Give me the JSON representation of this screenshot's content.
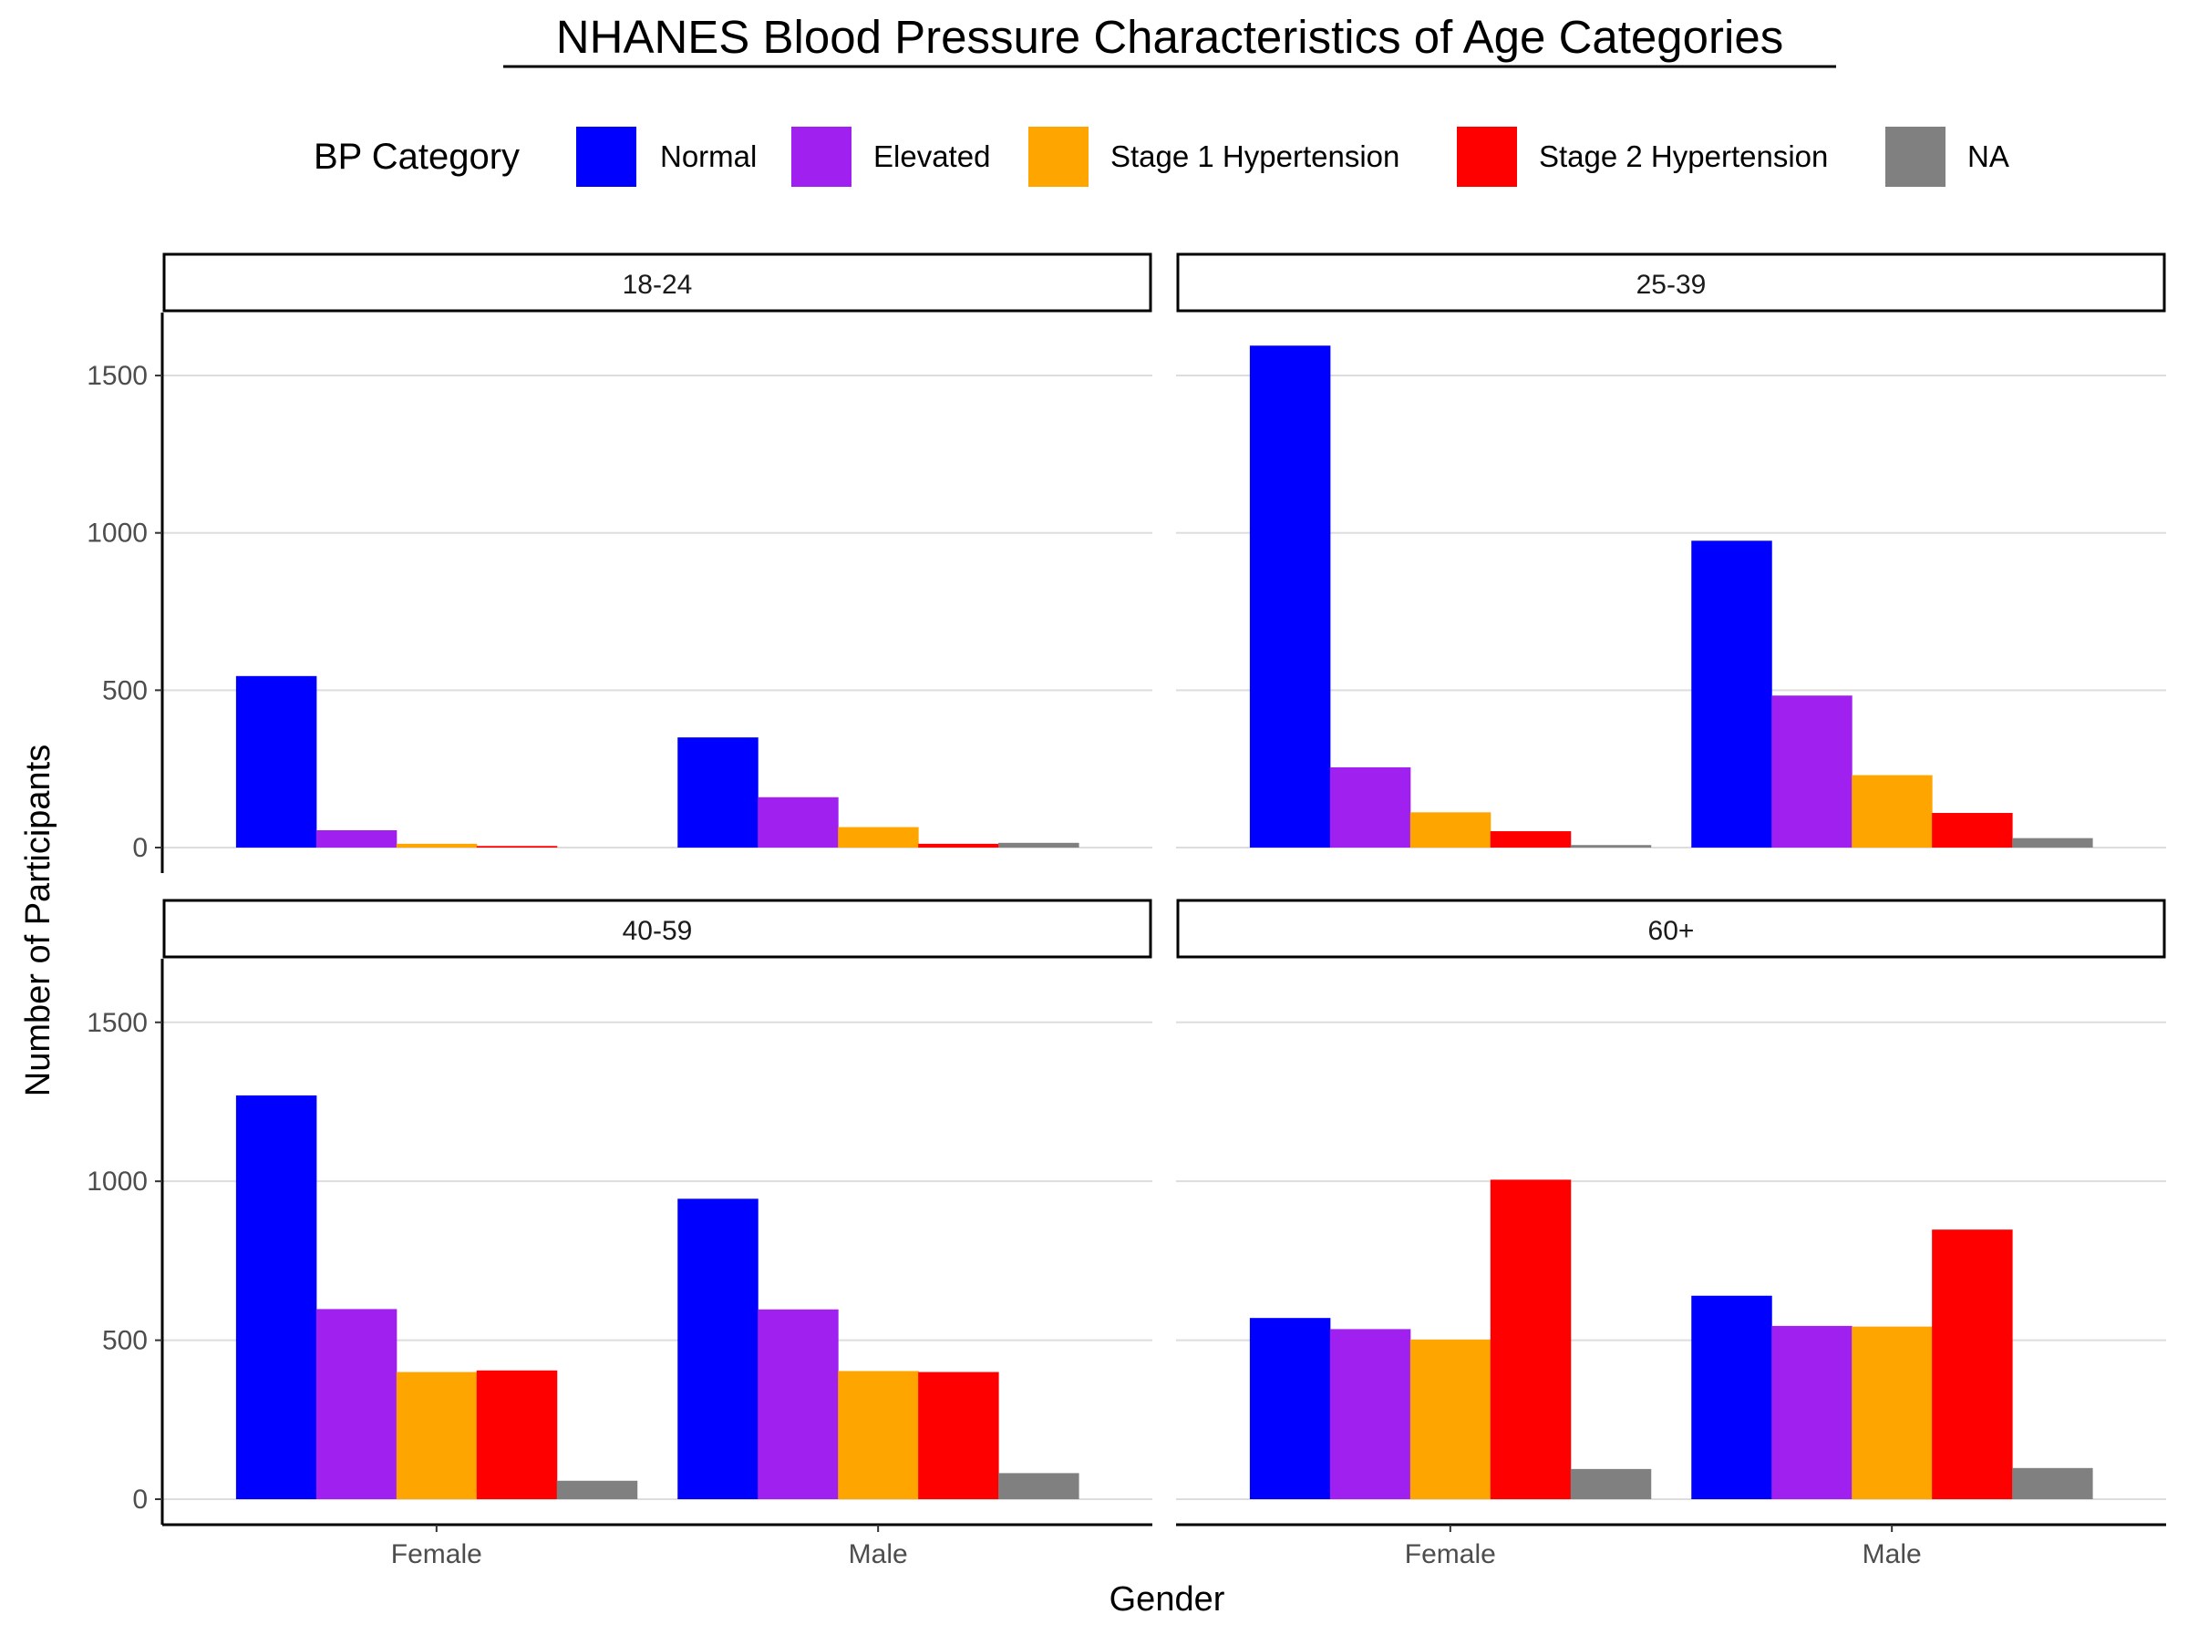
{
  "chart_data": {
    "type": "bar",
    "title": "NHANES Blood Pressure Characteristics of Age Categories",
    "xlabel": "Gender",
    "ylabel": "Number of Participants",
    "ylim": [
      0,
      1700
    ],
    "yticks": [
      0,
      500,
      1000,
      1500
    ],
    "grid": "horizontal major gridlines",
    "legend": {
      "title": "BP Category",
      "position": "top",
      "entries": [
        {
          "name": "Normal",
          "color": "#0000ff"
        },
        {
          "name": "Elevated",
          "color": "#a020f0"
        },
        {
          "name": "Stage 1 Hypertension",
          "color": "#ffa500"
        },
        {
          "name": "Stage 2 Hypertension",
          "color": "#ff0000"
        },
        {
          "name": "NA",
          "color": "#808080"
        }
      ]
    },
    "categories": [
      "Female",
      "Male"
    ],
    "facets": [
      {
        "label": "18-24",
        "series": [
          {
            "name": "Normal",
            "values": [
              545,
              350
            ]
          },
          {
            "name": "Elevated",
            "values": [
              55,
              160
            ]
          },
          {
            "name": "Stage 1 Hypertension",
            "values": [
              12,
              65
            ]
          },
          {
            "name": "Stage 2 Hypertension",
            "values": [
              5,
              12
            ]
          },
          {
            "name": "NA",
            "values": [
              0,
              15
            ]
          }
        ]
      },
      {
        "label": "25-39",
        "series": [
          {
            "name": "Normal",
            "values": [
              1595,
              975
            ]
          },
          {
            "name": "Elevated",
            "values": [
              255,
              483
            ]
          },
          {
            "name": "Stage 1 Hypertension",
            "values": [
              112,
              230
            ]
          },
          {
            "name": "Stage 2 Hypertension",
            "values": [
              52,
              110
            ]
          },
          {
            "name": "NA",
            "values": [
              8,
              30
            ]
          }
        ]
      },
      {
        "label": "40-59",
        "series": [
          {
            "name": "Normal",
            "values": [
              1270,
              945
            ]
          },
          {
            "name": "Elevated",
            "values": [
              598,
              597
            ]
          },
          {
            "name": "Stage 1 Hypertension",
            "values": [
              400,
              403
            ]
          },
          {
            "name": "Stage 2 Hypertension",
            "values": [
              405,
              400
            ]
          },
          {
            "name": "NA",
            "values": [
              58,
              82
            ]
          }
        ]
      },
      {
        "label": "60+",
        "series": [
          {
            "name": "Normal",
            "values": [
              570,
              640
            ]
          },
          {
            "name": "Elevated",
            "values": [
              535,
              545
            ]
          },
          {
            "name": "Stage 1 Hypertension",
            "values": [
              502,
              543
            ]
          },
          {
            "name": "Stage 2 Hypertension",
            "values": [
              1005,
              848
            ]
          },
          {
            "name": "NA",
            "values": [
              95,
              98
            ]
          }
        ]
      }
    ]
  }
}
